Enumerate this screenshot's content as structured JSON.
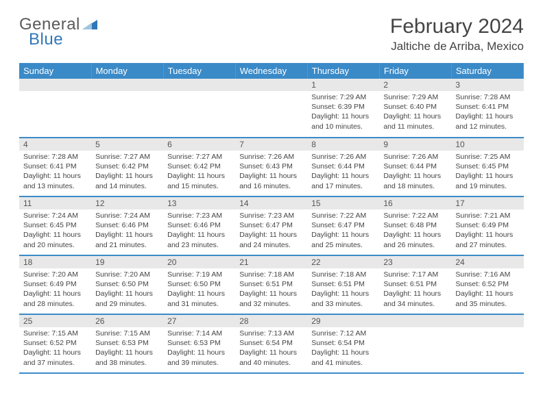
{
  "branding": {
    "logo_text_1": "General",
    "logo_text_2": "Blue",
    "triangle_color": "#2f77b8"
  },
  "header": {
    "month_title": "February 2024",
    "location": "Jaltiche de Arriba, Mexico"
  },
  "colors": {
    "header_bg": "#3a8ac8",
    "header_fg": "#ffffff",
    "daynum_bg": "#e8e8e8",
    "border": "#3a8ac8",
    "text": "#444444"
  },
  "day_headers": [
    "Sunday",
    "Monday",
    "Tuesday",
    "Wednesday",
    "Thursday",
    "Friday",
    "Saturday"
  ],
  "weeks": [
    [
      {
        "n": "",
        "sun": "",
        "set": "",
        "day": ""
      },
      {
        "n": "",
        "sun": "",
        "set": "",
        "day": ""
      },
      {
        "n": "",
        "sun": "",
        "set": "",
        "day": ""
      },
      {
        "n": "",
        "sun": "",
        "set": "",
        "day": ""
      },
      {
        "n": "1",
        "sun": "Sunrise: 7:29 AM",
        "set": "Sunset: 6:39 PM",
        "day": "Daylight: 11 hours and 10 minutes."
      },
      {
        "n": "2",
        "sun": "Sunrise: 7:29 AM",
        "set": "Sunset: 6:40 PM",
        "day": "Daylight: 11 hours and 11 minutes."
      },
      {
        "n": "3",
        "sun": "Sunrise: 7:28 AM",
        "set": "Sunset: 6:41 PM",
        "day": "Daylight: 11 hours and 12 minutes."
      }
    ],
    [
      {
        "n": "4",
        "sun": "Sunrise: 7:28 AM",
        "set": "Sunset: 6:41 PM",
        "day": "Daylight: 11 hours and 13 minutes."
      },
      {
        "n": "5",
        "sun": "Sunrise: 7:27 AM",
        "set": "Sunset: 6:42 PM",
        "day": "Daylight: 11 hours and 14 minutes."
      },
      {
        "n": "6",
        "sun": "Sunrise: 7:27 AM",
        "set": "Sunset: 6:42 PM",
        "day": "Daylight: 11 hours and 15 minutes."
      },
      {
        "n": "7",
        "sun": "Sunrise: 7:26 AM",
        "set": "Sunset: 6:43 PM",
        "day": "Daylight: 11 hours and 16 minutes."
      },
      {
        "n": "8",
        "sun": "Sunrise: 7:26 AM",
        "set": "Sunset: 6:44 PM",
        "day": "Daylight: 11 hours and 17 minutes."
      },
      {
        "n": "9",
        "sun": "Sunrise: 7:26 AM",
        "set": "Sunset: 6:44 PM",
        "day": "Daylight: 11 hours and 18 minutes."
      },
      {
        "n": "10",
        "sun": "Sunrise: 7:25 AM",
        "set": "Sunset: 6:45 PM",
        "day": "Daylight: 11 hours and 19 minutes."
      }
    ],
    [
      {
        "n": "11",
        "sun": "Sunrise: 7:24 AM",
        "set": "Sunset: 6:45 PM",
        "day": "Daylight: 11 hours and 20 minutes."
      },
      {
        "n": "12",
        "sun": "Sunrise: 7:24 AM",
        "set": "Sunset: 6:46 PM",
        "day": "Daylight: 11 hours and 21 minutes."
      },
      {
        "n": "13",
        "sun": "Sunrise: 7:23 AM",
        "set": "Sunset: 6:46 PM",
        "day": "Daylight: 11 hours and 23 minutes."
      },
      {
        "n": "14",
        "sun": "Sunrise: 7:23 AM",
        "set": "Sunset: 6:47 PM",
        "day": "Daylight: 11 hours and 24 minutes."
      },
      {
        "n": "15",
        "sun": "Sunrise: 7:22 AM",
        "set": "Sunset: 6:47 PM",
        "day": "Daylight: 11 hours and 25 minutes."
      },
      {
        "n": "16",
        "sun": "Sunrise: 7:22 AM",
        "set": "Sunset: 6:48 PM",
        "day": "Daylight: 11 hours and 26 minutes."
      },
      {
        "n": "17",
        "sun": "Sunrise: 7:21 AM",
        "set": "Sunset: 6:49 PM",
        "day": "Daylight: 11 hours and 27 minutes."
      }
    ],
    [
      {
        "n": "18",
        "sun": "Sunrise: 7:20 AM",
        "set": "Sunset: 6:49 PM",
        "day": "Daylight: 11 hours and 28 minutes."
      },
      {
        "n": "19",
        "sun": "Sunrise: 7:20 AM",
        "set": "Sunset: 6:50 PM",
        "day": "Daylight: 11 hours and 29 minutes."
      },
      {
        "n": "20",
        "sun": "Sunrise: 7:19 AM",
        "set": "Sunset: 6:50 PM",
        "day": "Daylight: 11 hours and 31 minutes."
      },
      {
        "n": "21",
        "sun": "Sunrise: 7:18 AM",
        "set": "Sunset: 6:51 PM",
        "day": "Daylight: 11 hours and 32 minutes."
      },
      {
        "n": "22",
        "sun": "Sunrise: 7:18 AM",
        "set": "Sunset: 6:51 PM",
        "day": "Daylight: 11 hours and 33 minutes."
      },
      {
        "n": "23",
        "sun": "Sunrise: 7:17 AM",
        "set": "Sunset: 6:51 PM",
        "day": "Daylight: 11 hours and 34 minutes."
      },
      {
        "n": "24",
        "sun": "Sunrise: 7:16 AM",
        "set": "Sunset: 6:52 PM",
        "day": "Daylight: 11 hours and 35 minutes."
      }
    ],
    [
      {
        "n": "25",
        "sun": "Sunrise: 7:15 AM",
        "set": "Sunset: 6:52 PM",
        "day": "Daylight: 11 hours and 37 minutes."
      },
      {
        "n": "26",
        "sun": "Sunrise: 7:15 AM",
        "set": "Sunset: 6:53 PM",
        "day": "Daylight: 11 hours and 38 minutes."
      },
      {
        "n": "27",
        "sun": "Sunrise: 7:14 AM",
        "set": "Sunset: 6:53 PM",
        "day": "Daylight: 11 hours and 39 minutes."
      },
      {
        "n": "28",
        "sun": "Sunrise: 7:13 AM",
        "set": "Sunset: 6:54 PM",
        "day": "Daylight: 11 hours and 40 minutes."
      },
      {
        "n": "29",
        "sun": "Sunrise: 7:12 AM",
        "set": "Sunset: 6:54 PM",
        "day": "Daylight: 11 hours and 41 minutes."
      },
      {
        "n": "",
        "sun": "",
        "set": "",
        "day": ""
      },
      {
        "n": "",
        "sun": "",
        "set": "",
        "day": ""
      }
    ]
  ]
}
